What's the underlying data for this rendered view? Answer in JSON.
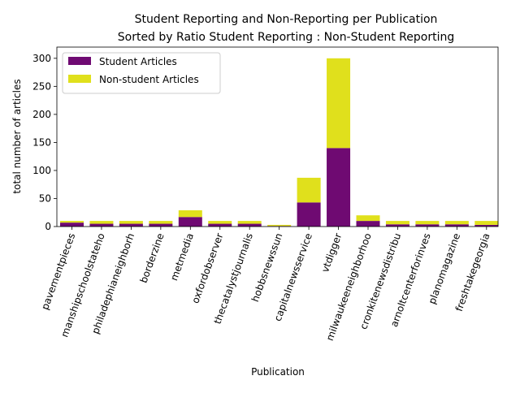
{
  "chart_data": {
    "type": "bar",
    "stacked": true,
    "title": "Student Reporting and Non-Reporting per Publication",
    "subtitle": "Sorted by Ratio Student Reporting : Non-Student Reporting",
    "xlabel": "Publication",
    "ylabel": "total number of articles",
    "ylim": [
      0,
      320
    ],
    "yticks": [
      0,
      50,
      100,
      150,
      200,
      250,
      300
    ],
    "categories": [
      "pavementpieces",
      "manshipschoolstateho",
      "philadephianeighborh",
      "borderzine",
      "metmedia",
      "oxfordobserver",
      "thecatalystjournalis",
      "hobbsnewssun",
      "capitalnewsservice",
      "vtdigger",
      "milwaukeeneighborhoo",
      "cronkitenewsdistribu",
      "arnoltcenterforinves",
      "planomagazine",
      "freshtakegeorgia"
    ],
    "series": [
      {
        "name": "Student Articles",
        "color": "#6f0a72",
        "values": [
          7,
          5,
          5,
          5,
          17,
          5,
          5,
          1,
          43,
          140,
          10,
          4,
          4,
          4,
          3
        ]
      },
      {
        "name": "Non-student Articles",
        "color": "#e0e01c",
        "values": [
          3,
          5,
          5,
          5,
          12,
          5,
          5,
          2,
          44,
          160,
          10,
          6,
          6,
          6,
          7
        ]
      }
    ],
    "legend_position": "top-left",
    "grid": false
  }
}
